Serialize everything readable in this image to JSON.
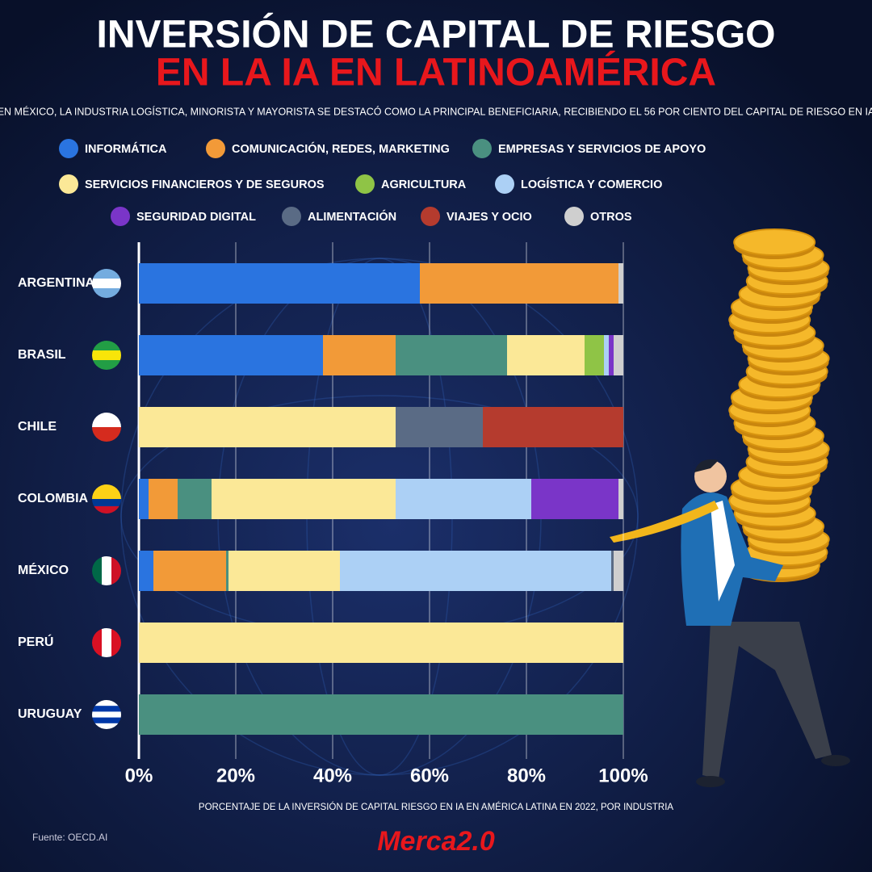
{
  "chart_data": {
    "type": "bar",
    "orientation": "horizontal",
    "stacked": true,
    "title": "INVERSIÓN DE CAPITAL DE RIESGO",
    "title_highlight": "EN LA IA EN LATINOAMÉRICA",
    "subtitle": "EN MÉXICO, LA INDUSTRIA LOGÍSTICA, MINORISTA Y MAYORISTA SE DESTACÓ COMO LA PRINCIPAL BENEFICIARIA, RECIBIENDO EL 56 POR CIENTO DEL CAPITAL DE RIESGO EN IA",
    "xlabel": "PORCENTAJE DE LA INVERSIÓN DE CAPITAL RIESGO EN IA EN AMÉRICA LATINA EN 2022, POR INDUSTRIA",
    "source": "Fuente: OECD.AI",
    "brand": "Merca2.0",
    "categories": [
      "ARGENTINA",
      "BRASIL",
      "CHILE",
      "COLOMBIA",
      "MÉXICO",
      "PERÚ",
      "URUGUAY"
    ],
    "series": [
      {
        "name": "INFORMÁTICA",
        "color": "#2a74e0",
        "values": [
          58,
          38,
          0,
          2,
          3,
          0,
          0
        ]
      },
      {
        "name": "COMUNICACIÓN, REDES, MARKETING",
        "color": "#f29a38",
        "values": [
          41,
          15,
          0,
          6,
          15,
          0,
          0
        ]
      },
      {
        "name": "EMPRESAS Y SERVICIOS DE APOYO",
        "color": "#4a9080",
        "values": [
          0,
          23,
          0,
          7,
          0.5,
          0,
          100
        ]
      },
      {
        "name": "SERVICIOS FINANCIEROS Y DE SEGUROS",
        "color": "#fbe897",
        "values": [
          0,
          16,
          53,
          38,
          23,
          100,
          0
        ]
      },
      {
        "name": "AGRICULTURA",
        "color": "#8fc446",
        "values": [
          0,
          4,
          0,
          0,
          0,
          0,
          0
        ]
      },
      {
        "name": "LOGÍSTICA Y COMERCIO",
        "color": "#acd0f5",
        "values": [
          0,
          1,
          0,
          28,
          56,
          0,
          0
        ]
      },
      {
        "name": "SEGURIDAD DIGITAL",
        "color": "#7a35c8",
        "values": [
          0,
          1,
          0,
          18,
          0,
          0,
          0
        ]
      },
      {
        "name": "ALIMENTACIÓN",
        "color": "#5a6b85",
        "values": [
          0,
          0,
          18,
          0,
          0.5,
          0,
          0
        ]
      },
      {
        "name": "VIAJES Y OCIO",
        "color": "#b53b2e",
        "values": [
          0,
          0,
          29,
          0,
          0,
          0,
          0
        ]
      },
      {
        "name": "OTROS",
        "color": "#cfcfcf",
        "values": [
          1,
          2,
          0,
          1,
          2,
          0,
          0
        ]
      }
    ],
    "xlim": [
      0,
      100
    ],
    "xticks": [
      {
        "value": 0,
        "label": "0%"
      },
      {
        "value": 20,
        "label": "20%"
      },
      {
        "value": 40,
        "label": "40%"
      },
      {
        "value": 60,
        "label": "60%"
      },
      {
        "value": 80,
        "label": "80%"
      },
      {
        "value": 100,
        "label": "100%"
      }
    ],
    "grid": true
  }
}
